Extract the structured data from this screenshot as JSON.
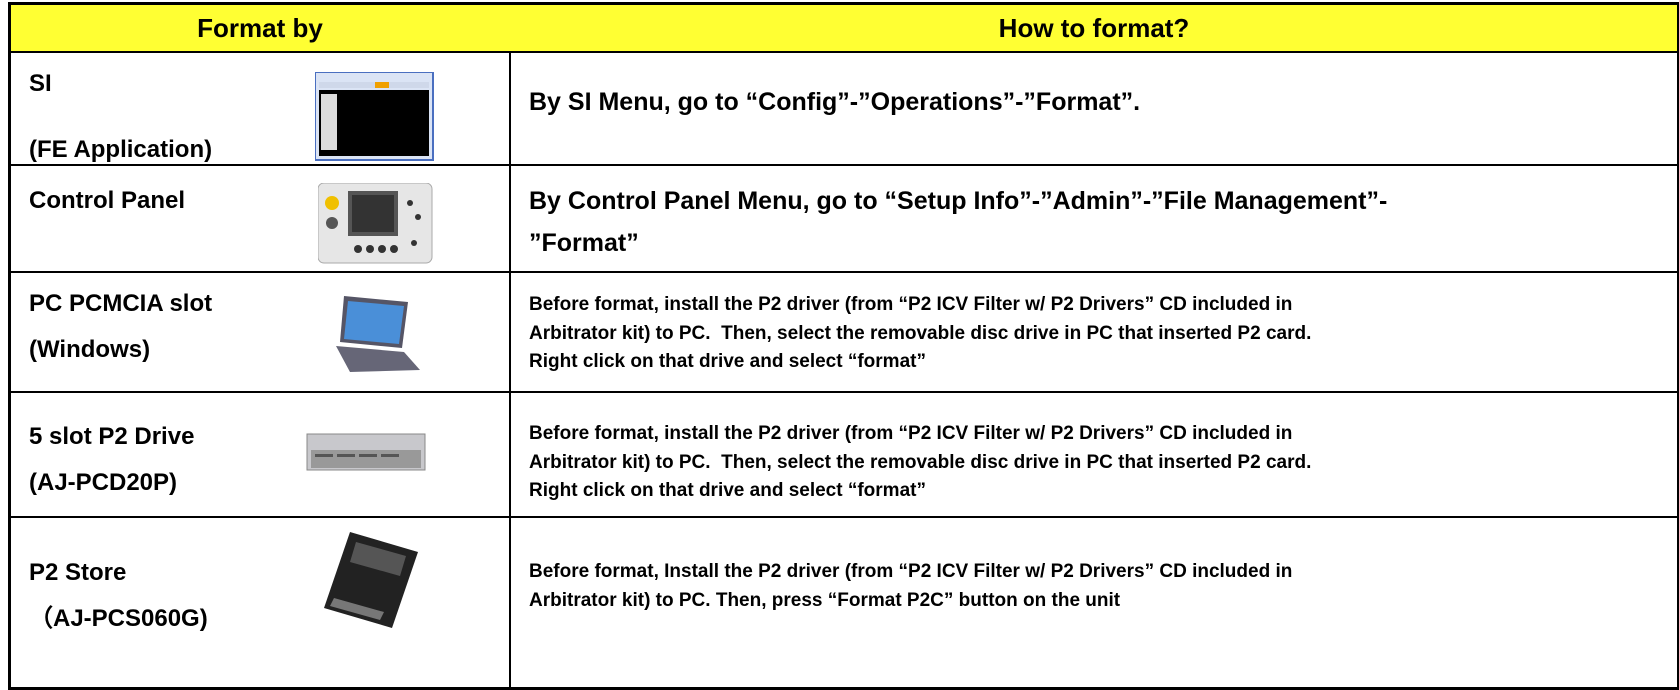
{
  "table": {
    "header": [
      "Format by",
      "How to format?"
    ],
    "rows": [
      {
        "name": [
          "SI",
          "(FE Application)"
        ],
        "description": [
          "By SI Menu, go to “Config”-”Operations”-”Format”."
        ]
      },
      {
        "name": [
          "Control Panel"
        ],
        "description": [
          "By Control Panel Menu, go to “Setup Info”-”Admin”-”File Management”-",
          "”Format”"
        ]
      },
      {
        "name": [
          "PC PCMCIA slot",
          "(Windows)"
        ],
        "description": [
          "Before format, install the P2 driver (from “P2 ICV Filter w/ P2 Drivers” CD included in",
          "Arbitrator kit) to PC.  Then, select the removable disc drive in PC that inserted P2 card.",
          "Right click on that drive and select “format”"
        ]
      },
      {
        "name": [
          "5 slot P2 Drive",
          "(AJ-PCD20P)"
        ],
        "description": [
          "Before format, install the P2 driver (from “P2 ICV Filter w/ P2 Drivers” CD included in",
          "Arbitrator kit) to PC.  Then, select the removable disc drive in PC that inserted P2 card.",
          "Right click on that drive and select “format”"
        ]
      },
      {
        "name": [
          "P2 Store",
          "（AJ-PCS060G)"
        ],
        "description": [
          "Before format, Install the P2 driver (from “P2 ICV Filter w/ P2 Drivers” CD included in",
          "Arbitrator kit) to PC. Then, press “Format P2C” button on the unit"
        ]
      }
    ]
  }
}
